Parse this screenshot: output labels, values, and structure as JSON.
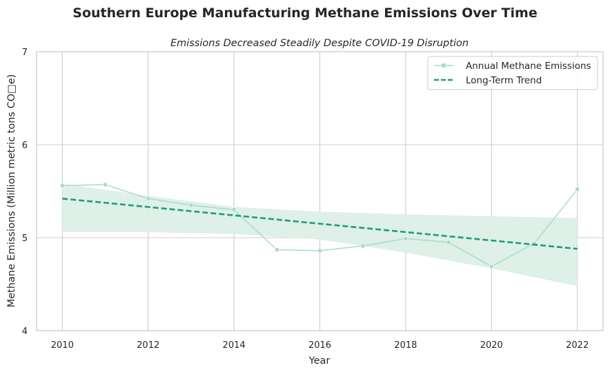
{
  "chart_data": {
    "type": "line",
    "title": "Southern Europe Manufacturing Methane Emissions Over Time",
    "subtitle": "Emissions Decreased Steadily Despite COVID-19 Disruption",
    "xlabel": "Year",
    "ylabel": "Methane Emissions (Million metric tons CO□e)",
    "xlim": [
      2009.4,
      2022.6
    ],
    "ylim": [
      4,
      7
    ],
    "xticks": [
      2010,
      2012,
      2014,
      2016,
      2018,
      2020,
      2022
    ],
    "yticks": [
      4,
      5,
      6,
      7
    ],
    "grid": true,
    "legend_position": "top-right",
    "x": [
      2010,
      2011,
      2012,
      2013,
      2014,
      2015,
      2016,
      2017,
      2018,
      2019,
      2020,
      2021,
      2022
    ],
    "series": [
      {
        "name": "Annual Methane Emissions",
        "kind": "line-with-square-markers",
        "color": "#a6dcc8",
        "values": [
          5.56,
          5.57,
          5.42,
          5.35,
          5.3,
          4.87,
          4.86,
          4.91,
          4.99,
          4.95,
          4.69,
          4.94,
          5.52
        ]
      },
      {
        "name": "Long-Term Trend",
        "kind": "dashed-regression",
        "color": "#1b9e77",
        "x": [
          2010,
          2022
        ],
        "values": [
          5.42,
          4.88
        ],
        "confidence_band": {
          "color": "#dcefe6",
          "x": [
            2010,
            2012,
            2014,
            2016,
            2018,
            2020,
            2022
          ],
          "upper": [
            5.58,
            5.45,
            5.33,
            5.28,
            5.25,
            5.23,
            5.21
          ],
          "lower": [
            5.06,
            5.06,
            5.04,
            4.98,
            4.84,
            4.67,
            4.48
          ]
        }
      }
    ]
  }
}
